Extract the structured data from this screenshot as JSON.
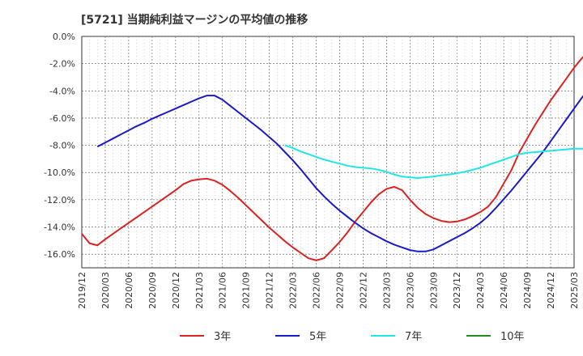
{
  "chart_data": {
    "type": "line",
    "title": "[5721]  当期純利益マージンの平均値の推移",
    "xlabel": "",
    "ylabel": "",
    "ylim": [
      -17,
      0
    ],
    "y_ticks": [
      0,
      -2,
      -4,
      -6,
      -8,
      -10,
      -12,
      -14,
      -16
    ],
    "y_tick_labels": [
      "0.0%",
      "-2.0%",
      "-4.0%",
      "-6.0%",
      "-8.0%",
      "-10.0%",
      "-12.0%",
      "-14.0%",
      "-16.0%"
    ],
    "x_tick_labels": [
      "2019/12",
      "2020/03",
      "2020/06",
      "2020/09",
      "2020/12",
      "2021/03",
      "2021/06",
      "2021/09",
      "2021/12",
      "2022/03",
      "2022/06",
      "2022/09",
      "2022/12",
      "2023/03",
      "2023/06",
      "2023/09",
      "2023/12",
      "2024/03",
      "2024/06",
      "2024/09",
      "2024/12",
      "2025/03"
    ],
    "grid": true,
    "legend_position": "bottom",
    "series": [
      {
        "name": "3年",
        "color": "#dd2222",
        "points": [
          [
            "2019/12",
            -14.5
          ],
          [
            "2020/01",
            -15.2
          ],
          [
            "2020/02",
            -15.35
          ],
          [
            "2020/03",
            -14.9
          ],
          [
            "2020/04",
            -14.5
          ],
          [
            "2020/05",
            -14.1
          ],
          [
            "2020/06",
            -13.7
          ],
          [
            "2020/07",
            -13.3
          ],
          [
            "2020/08",
            -12.9
          ],
          [
            "2020/09",
            -12.5
          ],
          [
            "2020/10",
            -12.1
          ],
          [
            "2020/11",
            -11.7
          ],
          [
            "2020/12",
            -11.3
          ],
          [
            "2021/01",
            -10.85
          ],
          [
            "2021/02",
            -10.6
          ],
          [
            "2021/03",
            -10.5
          ],
          [
            "2021/04",
            -10.45
          ],
          [
            "2021/05",
            -10.6
          ],
          [
            "2021/06",
            -10.9
          ],
          [
            "2021/07",
            -11.35
          ],
          [
            "2021/08",
            -11.85
          ],
          [
            "2021/09",
            -12.4
          ],
          [
            "2021/10",
            -12.95
          ],
          [
            "2021/11",
            -13.5
          ],
          [
            "2021/12",
            -14.05
          ],
          [
            "2022/01",
            -14.55
          ],
          [
            "2022/02",
            -15.05
          ],
          [
            "2022/03",
            -15.5
          ],
          [
            "2022/04",
            -15.9
          ],
          [
            "2022/05",
            -16.3
          ],
          [
            "2022/06",
            -16.45
          ],
          [
            "2022/07",
            -16.3
          ],
          [
            "2022/08",
            -15.7
          ],
          [
            "2022/09",
            -15.1
          ],
          [
            "2022/10",
            -14.4
          ],
          [
            "2022/11",
            -13.6
          ],
          [
            "2022/12",
            -12.9
          ],
          [
            "2023/01",
            -12.2
          ],
          [
            "2023/02",
            -11.6
          ],
          [
            "2023/03",
            -11.2
          ],
          [
            "2023/04",
            -11.05
          ],
          [
            "2023/05",
            -11.3
          ],
          [
            "2023/06",
            -12.0
          ],
          [
            "2023/07",
            -12.6
          ],
          [
            "2023/08",
            -13.05
          ],
          [
            "2023/09",
            -13.35
          ],
          [
            "2023/10",
            -13.55
          ],
          [
            "2023/11",
            -13.65
          ],
          [
            "2023/12",
            -13.6
          ],
          [
            "2024/01",
            -13.45
          ],
          [
            "2024/02",
            -13.2
          ],
          [
            "2024/03",
            -12.9
          ],
          [
            "2024/04",
            -12.5
          ],
          [
            "2024/05",
            -11.8
          ],
          [
            "2024/06",
            -10.8
          ],
          [
            "2024/07",
            -9.8
          ],
          [
            "2024/08",
            -8.5
          ],
          [
            "2024/09",
            -7.5
          ],
          [
            "2024/10",
            -6.5
          ],
          [
            "2024/11",
            -5.6
          ],
          [
            "2024/12",
            -4.7
          ],
          [
            "2025/01",
            -3.9
          ],
          [
            "2025/02",
            -3.1
          ],
          [
            "2025/03",
            -2.3
          ],
          [
            "2025/04",
            -1.6
          ],
          [
            "2025/05",
            -1.1
          ],
          [
            "2025/06",
            -0.8
          ]
        ]
      },
      {
        "name": "5年",
        "color": "#1a1acc",
        "points": [
          [
            "2020/02",
            -8.1
          ],
          [
            "2020/03",
            -7.8
          ],
          [
            "2020/04",
            -7.5
          ],
          [
            "2020/05",
            -7.2
          ],
          [
            "2020/06",
            -6.9
          ],
          [
            "2020/07",
            -6.6
          ],
          [
            "2020/08",
            -6.35
          ],
          [
            "2020/09",
            -6.05
          ],
          [
            "2020/10",
            -5.8
          ],
          [
            "2020/11",
            -5.55
          ],
          [
            "2020/12",
            -5.3
          ],
          [
            "2021/01",
            -5.05
          ],
          [
            "2021/02",
            -4.8
          ],
          [
            "2021/03",
            -4.55
          ],
          [
            "2021/04",
            -4.35
          ],
          [
            "2021/05",
            -4.35
          ],
          [
            "2021/06",
            -4.65
          ],
          [
            "2021/07",
            -5.1
          ],
          [
            "2021/08",
            -5.55
          ],
          [
            "2021/09",
            -6.0
          ],
          [
            "2021/10",
            -6.45
          ],
          [
            "2021/11",
            -6.9
          ],
          [
            "2021/12",
            -7.4
          ],
          [
            "2022/01",
            -7.9
          ],
          [
            "2022/02",
            -8.5
          ],
          [
            "2022/03",
            -9.1
          ],
          [
            "2022/04",
            -9.75
          ],
          [
            "2022/05",
            -10.45
          ],
          [
            "2022/06",
            -11.15
          ],
          [
            "2022/07",
            -11.75
          ],
          [
            "2022/08",
            -12.3
          ],
          [
            "2022/09",
            -12.8
          ],
          [
            "2022/10",
            -13.25
          ],
          [
            "2022/11",
            -13.7
          ],
          [
            "2022/12",
            -14.1
          ],
          [
            "2023/01",
            -14.45
          ],
          [
            "2023/02",
            -14.75
          ],
          [
            "2023/03",
            -15.05
          ],
          [
            "2023/04",
            -15.3
          ],
          [
            "2023/05",
            -15.5
          ],
          [
            "2023/06",
            -15.7
          ],
          [
            "2023/07",
            -15.8
          ],
          [
            "2023/08",
            -15.8
          ],
          [
            "2023/09",
            -15.65
          ],
          [
            "2023/10",
            -15.35
          ],
          [
            "2023/11",
            -15.05
          ],
          [
            "2023/12",
            -14.75
          ],
          [
            "2024/01",
            -14.45
          ],
          [
            "2024/02",
            -14.1
          ],
          [
            "2024/03",
            -13.7
          ],
          [
            "2024/04",
            -13.2
          ],
          [
            "2024/05",
            -12.6
          ],
          [
            "2024/06",
            -11.95
          ],
          [
            "2024/07",
            -11.3
          ],
          [
            "2024/08",
            -10.6
          ],
          [
            "2024/09",
            -9.9
          ],
          [
            "2024/10",
            -9.2
          ],
          [
            "2024/11",
            -8.5
          ],
          [
            "2024/12",
            -7.7
          ],
          [
            "2025/01",
            -6.9
          ],
          [
            "2025/02",
            -6.1
          ],
          [
            "2025/03",
            -5.3
          ],
          [
            "2025/04",
            -4.5
          ],
          [
            "2025/05",
            -3.8
          ],
          [
            "2025/06",
            -3.2
          ],
          [
            "2025/07",
            -2.9
          ]
        ]
      },
      {
        "name": "7年",
        "color": "#22e6e6",
        "points": [
          [
            "2022/02",
            -8.0
          ],
          [
            "2022/03",
            -8.2
          ],
          [
            "2022/04",
            -8.45
          ],
          [
            "2022/05",
            -8.65
          ],
          [
            "2022/06",
            -8.85
          ],
          [
            "2022/07",
            -9.05
          ],
          [
            "2022/08",
            -9.2
          ],
          [
            "2022/09",
            -9.35
          ],
          [
            "2022/10",
            -9.5
          ],
          [
            "2022/11",
            -9.6
          ],
          [
            "2022/12",
            -9.65
          ],
          [
            "2023/01",
            -9.7
          ],
          [
            "2023/02",
            -9.8
          ],
          [
            "2023/03",
            -9.95
          ],
          [
            "2023/04",
            -10.15
          ],
          [
            "2023/05",
            -10.3
          ],
          [
            "2023/06",
            -10.35
          ],
          [
            "2023/07",
            -10.4
          ],
          [
            "2023/08",
            -10.35
          ],
          [
            "2023/09",
            -10.3
          ],
          [
            "2023/10",
            -10.2
          ],
          [
            "2023/11",
            -10.15
          ],
          [
            "2023/12",
            -10.05
          ],
          [
            "2024/01",
            -9.95
          ],
          [
            "2024/02",
            -9.8
          ],
          [
            "2024/03",
            -9.65
          ],
          [
            "2024/04",
            -9.45
          ],
          [
            "2024/05",
            -9.25
          ],
          [
            "2024/06",
            -9.05
          ],
          [
            "2024/07",
            -8.85
          ],
          [
            "2024/08",
            -8.65
          ],
          [
            "2024/09",
            -8.55
          ],
          [
            "2024/10",
            -8.5
          ],
          [
            "2024/11",
            -8.45
          ],
          [
            "2024/12",
            -8.4
          ],
          [
            "2025/01",
            -8.35
          ],
          [
            "2025/02",
            -8.3
          ],
          [
            "2025/03",
            -8.25
          ],
          [
            "2025/04",
            -8.25
          ],
          [
            "2025/05",
            -8.3
          ],
          [
            "2025/06",
            -8.4
          ]
        ]
      },
      {
        "name": "10年",
        "color": "#228b22",
        "points": []
      }
    ]
  }
}
